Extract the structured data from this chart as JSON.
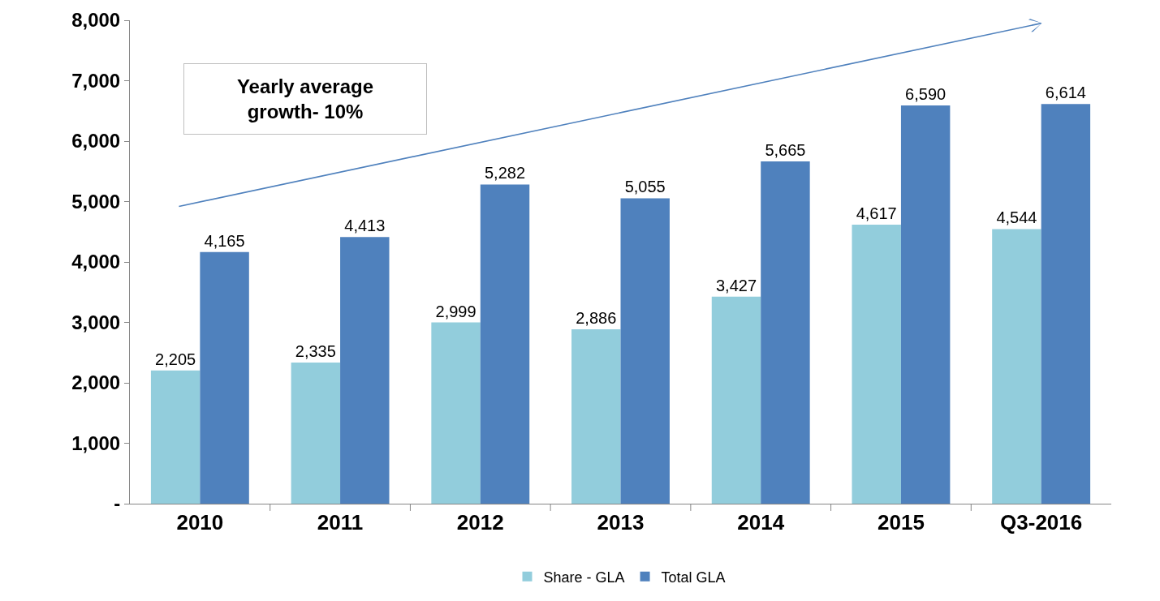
{
  "chart_data": {
    "type": "bar",
    "categories": [
      "2010",
      "2011",
      "2012",
      "2013",
      "2014",
      "2015",
      "Q3-2016"
    ],
    "series": [
      {
        "name": "Share - GLA",
        "color": "#92cddc",
        "values": [
          2205,
          2335,
          2999,
          2886,
          3427,
          4617,
          4544
        ],
        "value_labels": [
          "2,205",
          "2,335",
          "2,999",
          "2,886",
          "3,427",
          "4,617",
          "4,544"
        ]
      },
      {
        "name": "Total GLA",
        "color": "#4f81bd",
        "values": [
          4165,
          4413,
          5282,
          5055,
          5665,
          6590,
          6614
        ],
        "value_labels": [
          "4,165",
          "4,413",
          "5,282",
          "5,055",
          "5,665",
          "6,590",
          "6,614"
        ]
      }
    ],
    "ylim": [
      0,
      8000
    ],
    "yticks": [
      {
        "value": 0,
        "label": "-"
      },
      {
        "value": 1000,
        "label": "1,000"
      },
      {
        "value": 2000,
        "label": "2,000"
      },
      {
        "value": 3000,
        "label": "3,000"
      },
      {
        "value": 4000,
        "label": "4,000"
      },
      {
        "value": 5000,
        "label": "5,000"
      },
      {
        "value": 6000,
        "label": "6,000"
      },
      {
        "value": 7000,
        "label": "7,000"
      },
      {
        "value": 8000,
        "label": "8,000"
      }
    ],
    "annotations": [
      "Yearly average growth- 10%"
    ],
    "grid": false,
    "legend": "bottom"
  }
}
